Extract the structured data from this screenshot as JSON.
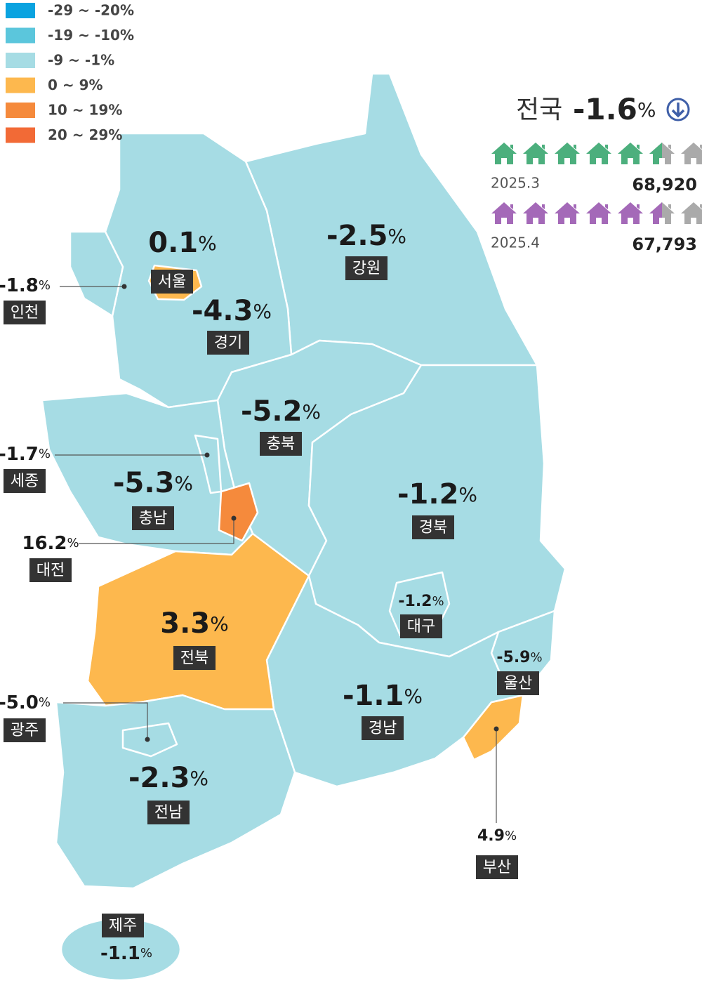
{
  "legend": [
    {
      "label": "-29 ~ -20%",
      "color": "#0aa3e0"
    },
    {
      "label": "-19 ~ -10%",
      "color": "#5bc6dc"
    },
    {
      "label": "-9 ~ -1%",
      "color": "#a6dce4"
    },
    {
      "label": "0 ~ 9%",
      "color": "#fdb84e"
    },
    {
      "label": "10 ~ 19%",
      "color": "#f58a3c"
    },
    {
      "label": "20 ~ 29%",
      "color": "#f26a36"
    }
  ],
  "unit": "%",
  "national": {
    "label": "전국",
    "value": "-1.6"
  },
  "comparison": [
    {
      "date": "2025.3",
      "count": "68,920",
      "color": "#4caf7d"
    },
    {
      "date": "2025.4",
      "count": "67,793",
      "color": "#a469b8"
    }
  ],
  "regions": [
    {
      "name": "강원",
      "value": "-2.5",
      "color": "#a6dce4"
    },
    {
      "name": "경기",
      "value": "-4.3",
      "color": "#a6dce4"
    },
    {
      "name": "인천",
      "value": "-1.8",
      "color": "#a6dce4"
    },
    {
      "name": "서울",
      "value": "0.1",
      "color": "#fdb84e"
    },
    {
      "name": "충북",
      "value": "-5.2",
      "color": "#a6dce4"
    },
    {
      "name": "충남",
      "value": "-5.3",
      "color": "#a6dce4"
    },
    {
      "name": "세종",
      "value": "-1.7",
      "color": "#a6dce4"
    },
    {
      "name": "대전",
      "value": "16.2",
      "color": "#f58a3c"
    },
    {
      "name": "경북",
      "value": "-1.2",
      "color": "#a6dce4"
    },
    {
      "name": "대구",
      "value": "-1.2",
      "color": "#a6dce4"
    },
    {
      "name": "울산",
      "value": "-5.9",
      "color": "#a6dce4"
    },
    {
      "name": "부산",
      "value": "4.9",
      "color": "#fdb84e"
    },
    {
      "name": "경남",
      "value": "-1.1",
      "color": "#a6dce4"
    },
    {
      "name": "전북",
      "value": "3.3",
      "color": "#fdb84e"
    },
    {
      "name": "광주",
      "value": "-5.0",
      "color": "#a6dce4"
    },
    {
      "name": "전남",
      "value": "-2.3",
      "color": "#a6dce4"
    },
    {
      "name": "제주",
      "value": "-1.1",
      "color": "#a6dce4"
    }
  ]
}
